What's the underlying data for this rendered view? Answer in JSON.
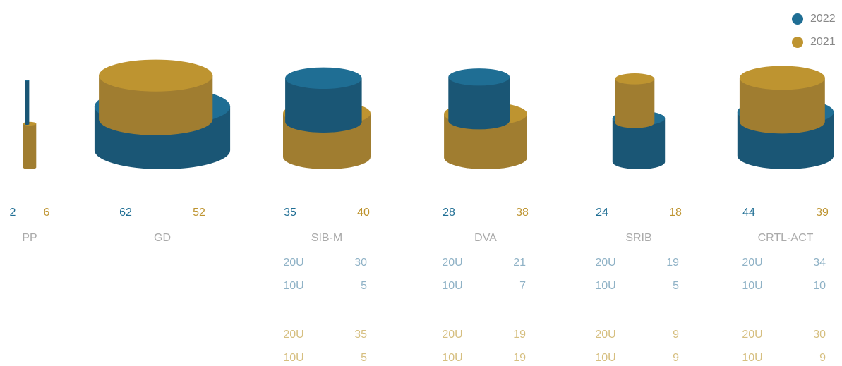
{
  "chart_data": {
    "type": "cylinder",
    "series": [
      {
        "name": "2022",
        "color": "#1f6e94",
        "side": "#1a5675",
        "light": "#8fb2c6"
      },
      {
        "name": "2021",
        "color": "#be9430",
        "side": "#a07d30",
        "light": "#d6bf80"
      }
    ],
    "groups": [
      {
        "name": "PP",
        "values": [
          2,
          6
        ]
      },
      {
        "name": "GD",
        "values": [
          62,
          52
        ]
      },
      {
        "name": "SIB-M",
        "values": [
          35,
          40
        ],
        "breakdown": [
          [
            {
              "label": "20U",
              "value": 30
            },
            {
              "label": "10U",
              "value": 5
            }
          ],
          [
            {
              "label": "20U",
              "value": 35
            },
            {
              "label": "10U",
              "value": 5
            }
          ]
        ]
      },
      {
        "name": "DVA",
        "values": [
          28,
          38
        ],
        "breakdown": [
          [
            {
              "label": "20U",
              "value": 21
            },
            {
              "label": "10U",
              "value": 7
            }
          ],
          [
            {
              "label": "20U",
              "value": 19
            },
            {
              "label": "10U",
              "value": 19
            }
          ]
        ]
      },
      {
        "name": "SRIB",
        "values": [
          24,
          18
        ],
        "breakdown": [
          [
            {
              "label": "20U",
              "value": 19
            },
            {
              "label": "10U",
              "value": 5
            }
          ],
          [
            {
              "label": "20U",
              "value": 9
            },
            {
              "label": "10U",
              "value": 9
            }
          ]
        ]
      },
      {
        "name": "CRTL-ACT",
        "values": [
          44,
          39
        ],
        "breakdown": [
          [
            {
              "label": "20U",
              "value": 34
            },
            {
              "label": "10U",
              "value": 10
            }
          ],
          [
            {
              "label": "20U",
              "value": 30
            },
            {
              "label": "10U",
              "value": 9
            }
          ]
        ]
      }
    ]
  }
}
